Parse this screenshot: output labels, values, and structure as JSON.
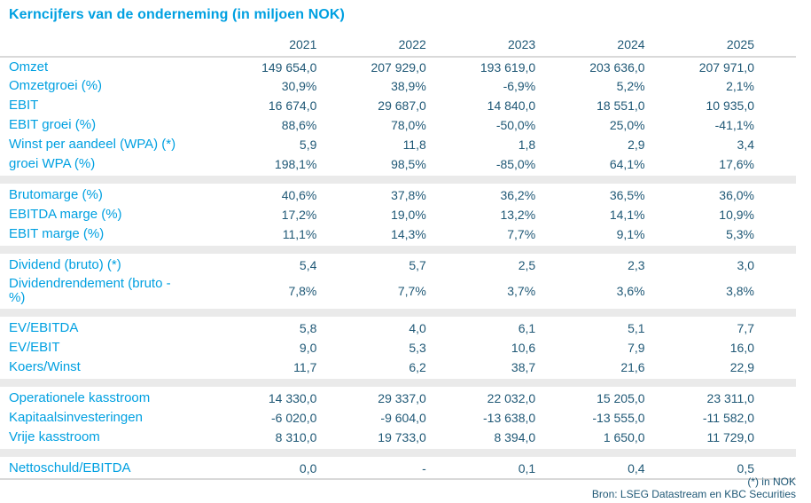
{
  "title": "Kerncijfers van de onderneming (in miljoen NOK)",
  "columns": [
    "2021",
    "2022",
    "2023",
    "2024",
    "2025"
  ],
  "sections": [
    {
      "rows": [
        {
          "label": "Omzet",
          "values": [
            "149 654,0",
            "207 929,0",
            "193 619,0",
            "203 636,0",
            "207 971,0"
          ]
        },
        {
          "label": "Omzetgroei (%)",
          "values": [
            "30,9%",
            "38,9%",
            "-6,9%",
            "5,2%",
            "2,1%"
          ]
        },
        {
          "label": "EBIT",
          "values": [
            "16 674,0",
            "29 687,0",
            "14 840,0",
            "18 551,0",
            "10 935,0"
          ]
        },
        {
          "label": "EBIT groei (%)",
          "values": [
            "88,6%",
            "78,0%",
            "-50,0%",
            "25,0%",
            "-41,1%"
          ]
        },
        {
          "label": "Winst per aandeel (WPA) (*)",
          "values": [
            "5,9",
            "11,8",
            "1,8",
            "2,9",
            "3,4"
          ]
        },
        {
          "label": "groei WPA (%)",
          "values": [
            "198,1%",
            "98,5%",
            "-85,0%",
            "64,1%",
            "17,6%"
          ]
        }
      ]
    },
    {
      "rows": [
        {
          "label": "Brutomarge (%)",
          "values": [
            "40,6%",
            "37,8%",
            "36,2%",
            "36,5%",
            "36,0%"
          ]
        },
        {
          "label": "EBITDA marge (%)",
          "values": [
            "17,2%",
            "19,0%",
            "13,2%",
            "14,1%",
            "10,9%"
          ]
        },
        {
          "label": "EBIT marge (%)",
          "values": [
            "11,1%",
            "14,3%",
            "7,7%",
            "9,1%",
            "5,3%"
          ]
        }
      ]
    },
    {
      "rows": [
        {
          "label": "Dividend (bruto) (*)",
          "values": [
            "5,4",
            "5,7",
            "2,5",
            "2,3",
            "3,0"
          ]
        },
        {
          "label": "Dividendrendement (bruto -\n%)",
          "values": [
            "7,8%",
            "7,7%",
            "3,7%",
            "3,6%",
            "3,8%"
          ]
        }
      ]
    },
    {
      "rows": [
        {
          "label": "EV/EBITDA",
          "values": [
            "5,8",
            "4,0",
            "6,1",
            "5,1",
            "7,7"
          ]
        },
        {
          "label": "EV/EBIT",
          "values": [
            "9,0",
            "5,3",
            "10,6",
            "7,9",
            "16,0"
          ]
        },
        {
          "label": "Koers/Winst",
          "values": [
            "11,7",
            "6,2",
            "38,7",
            "21,6",
            "22,9"
          ]
        }
      ]
    },
    {
      "rows": [
        {
          "label": "Operationele kasstroom",
          "values": [
            "14 330,0",
            "29 337,0",
            "22 032,0",
            "15 205,0",
            "23 311,0"
          ]
        },
        {
          "label": "Kapitaalsinvesteringen",
          "values": [
            "-6 020,0",
            "-9 604,0",
            "-13 638,0",
            "-13 555,0",
            "-11 582,0"
          ]
        },
        {
          "label": "Vrije kasstroom",
          "values": [
            "8 310,0",
            "19 733,0",
            "8 394,0",
            "1 650,0",
            "11 729,0"
          ]
        }
      ]
    },
    {
      "rows": [
        {
          "label": "Nettoschuld/EBITDA",
          "values": [
            "0,0",
            "-",
            "0,1",
            "0,4",
            "0,5"
          ]
        }
      ]
    }
  ],
  "footnotes": {
    "unit": "(*) in NOK",
    "source": "Bron: LSEG Datastream en KBC Securities"
  },
  "colors": {
    "accent": "#00A0E1",
    "value_text": "#1F5876",
    "divider_band": "#EAEAEA",
    "rule_line": "#D9D9D9",
    "background": "#FFFFFF"
  }
}
